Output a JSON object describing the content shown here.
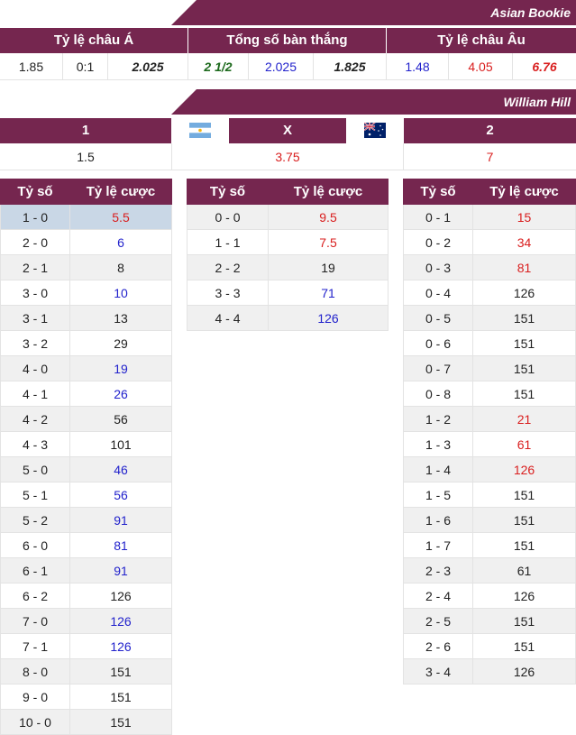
{
  "asian_bookie": {
    "name": "Asian Bookie",
    "headers": {
      "asian": "Tỷ lệ châu Á",
      "total": "Tổng số bàn thắng",
      "euro": "Tỷ lệ châu Âu"
    },
    "values": {
      "a1": "1.85",
      "a2": "0:1",
      "a3": "2.025",
      "t1": "2 1/2",
      "t2": "2.025",
      "t3": "1.825",
      "e1": "1.48",
      "e2": "4.05",
      "e3": "6.76"
    }
  },
  "william_hill": {
    "name": "William Hill",
    "headers": {
      "home": "1",
      "draw": "X",
      "away": "2"
    },
    "values": {
      "home": "1.5",
      "draw": "3.75",
      "away": "7"
    }
  },
  "score_tables": {
    "col_score": "Tỷ số",
    "col_odds": "Tỷ lệ cược",
    "home": [
      {
        "score": "1 - 0",
        "odds": "5.5",
        "color": "#d91e1e"
      },
      {
        "score": "2 - 0",
        "odds": "6",
        "color": "#2222cc"
      },
      {
        "score": "2 - 1",
        "odds": "8",
        "color": "#222222"
      },
      {
        "score": "3 - 0",
        "odds": "10",
        "color": "#2222cc"
      },
      {
        "score": "3 - 1",
        "odds": "13",
        "color": "#222222"
      },
      {
        "score": "3 - 2",
        "odds": "29",
        "color": "#222222"
      },
      {
        "score": "4 - 0",
        "odds": "19",
        "color": "#2222cc"
      },
      {
        "score": "4 - 1",
        "odds": "26",
        "color": "#2222cc"
      },
      {
        "score": "4 - 2",
        "odds": "56",
        "color": "#222222"
      },
      {
        "score": "4 - 3",
        "odds": "101",
        "color": "#222222"
      },
      {
        "score": "5 - 0",
        "odds": "46",
        "color": "#2222cc"
      },
      {
        "score": "5 - 1",
        "odds": "56",
        "color": "#2222cc"
      },
      {
        "score": "5 - 2",
        "odds": "91",
        "color": "#2222cc"
      },
      {
        "score": "6 - 0",
        "odds": "81",
        "color": "#2222cc"
      },
      {
        "score": "6 - 1",
        "odds": "91",
        "color": "#2222cc"
      },
      {
        "score": "6 - 2",
        "odds": "126",
        "color": "#222222"
      },
      {
        "score": "7 - 0",
        "odds": "126",
        "color": "#2222cc"
      },
      {
        "score": "7 - 1",
        "odds": "126",
        "color": "#2222cc"
      },
      {
        "score": "8 - 0",
        "odds": "151",
        "color": "#222222"
      },
      {
        "score": "9 - 0",
        "odds": "151",
        "color": "#222222"
      },
      {
        "score": "10 - 0",
        "odds": "151",
        "color": "#222222"
      }
    ],
    "draw": [
      {
        "score": "0 - 0",
        "odds": "9.5",
        "color": "#d91e1e"
      },
      {
        "score": "1 - 1",
        "odds": "7.5",
        "color": "#d91e1e"
      },
      {
        "score": "2 - 2",
        "odds": "19",
        "color": "#222222"
      },
      {
        "score": "3 - 3",
        "odds": "71",
        "color": "#2222cc"
      },
      {
        "score": "4 - 4",
        "odds": "126",
        "color": "#2222cc"
      }
    ],
    "away": [
      {
        "score": "0 - 1",
        "odds": "15",
        "color": "#d91e1e"
      },
      {
        "score": "0 - 2",
        "odds": "34",
        "color": "#d91e1e"
      },
      {
        "score": "0 - 3",
        "odds": "81",
        "color": "#d91e1e"
      },
      {
        "score": "0 - 4",
        "odds": "126",
        "color": "#222222"
      },
      {
        "score": "0 - 5",
        "odds": "151",
        "color": "#222222"
      },
      {
        "score": "0 - 6",
        "odds": "151",
        "color": "#222222"
      },
      {
        "score": "0 - 7",
        "odds": "151",
        "color": "#222222"
      },
      {
        "score": "0 - 8",
        "odds": "151",
        "color": "#222222"
      },
      {
        "score": "1 - 2",
        "odds": "21",
        "color": "#d91e1e"
      },
      {
        "score": "1 - 3",
        "odds": "61",
        "color": "#d91e1e"
      },
      {
        "score": "1 - 4",
        "odds": "126",
        "color": "#d91e1e"
      },
      {
        "score": "1 - 5",
        "odds": "151",
        "color": "#222222"
      },
      {
        "score": "1 - 6",
        "odds": "151",
        "color": "#222222"
      },
      {
        "score": "1 - 7",
        "odds": "151",
        "color": "#222222"
      },
      {
        "score": "2 - 3",
        "odds": "61",
        "color": "#222222"
      },
      {
        "score": "2 - 4",
        "odds": "126",
        "color": "#222222"
      },
      {
        "score": "2 - 5",
        "odds": "151",
        "color": "#222222"
      },
      {
        "score": "2 - 6",
        "odds": "151",
        "color": "#222222"
      },
      {
        "score": "3 - 4",
        "odds": "126",
        "color": "#222222"
      }
    ]
  },
  "flags": {
    "home": "argentina-flag-icon",
    "away": "australia-flag-icon"
  },
  "colors": {
    "brand": "#75264f",
    "highlight": "#c9d7e6"
  }
}
